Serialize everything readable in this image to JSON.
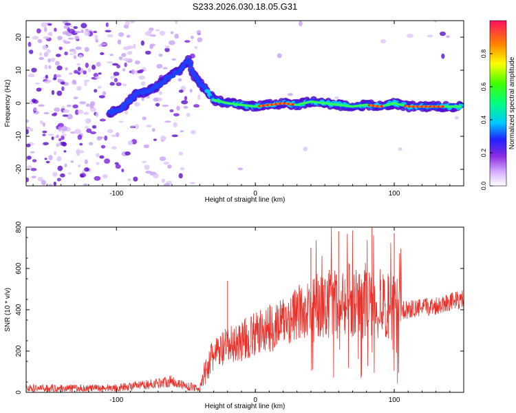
{
  "figure_title": "S233.2026.030.18.05.G31",
  "chart_data": [
    {
      "type": "heatmap",
      "description_role": "spectrogram",
      "xlabel": "Height of straight line (km)",
      "ylabel": "Frequency (Hz)",
      "xlim": [
        -165,
        150
      ],
      "ylim": [
        -25,
        25
      ],
      "xticks": [
        -100,
        0,
        100
      ],
      "yticks": [
        -20,
        -10,
        0,
        10,
        20
      ],
      "ridge": {
        "x": [
          -105,
          -95,
          -85,
          -75,
          -65,
          -55,
          -48,
          -45,
          -40,
          -35,
          -30,
          -20,
          -10,
          0,
          10,
          20,
          30,
          40,
          50,
          60,
          70,
          80,
          90,
          100,
          110,
          120,
          130,
          140,
          148
        ],
        "y": [
          -3,
          -1,
          3,
          4,
          7,
          10,
          13,
          9,
          6,
          4,
          1,
          0,
          -0.5,
          -1,
          -0.5,
          0,
          -0.5,
          0.5,
          0,
          -0.5,
          -1,
          -0.5,
          -1,
          0,
          -1,
          -1,
          -1,
          -1,
          -1
        ]
      },
      "colorbar": {
        "label": "Normalized spectral amplitude",
        "min": 0.0,
        "max": 1.0,
        "ticks": [
          0.0,
          0.2,
          0.4,
          0.6,
          0.8
        ],
        "tick_labels": [
          "0.0",
          "0.2",
          "0.4",
          "0.6",
          "0.8"
        ]
      }
    },
    {
      "type": "line",
      "xlabel": "Height of straight line (km)",
      "ylabel": "SNR (10 * v/v)",
      "xlim": [
        -165,
        150
      ],
      "ylim": [
        0,
        800
      ],
      "xticks": [
        -100,
        0,
        100
      ],
      "yticks": [
        0,
        200,
        400,
        600,
        800
      ],
      "color": "#e8302a",
      "series": [
        {
          "name": "SNR",
          "x": [
            -165,
            -120,
            -100,
            -80,
            -60,
            -50,
            -40,
            -35,
            -30,
            -20,
            -10,
            0,
            10,
            20,
            30,
            40,
            50,
            60,
            70,
            80,
            90,
            100,
            110,
            120,
            130,
            140,
            150
          ],
          "values": [
            20,
            20,
            22,
            35,
            55,
            30,
            20,
            120,
            180,
            220,
            250,
            280,
            310,
            340,
            380,
            410,
            420,
            430,
            430,
            420,
            410,
            400,
            400,
            410,
            420,
            440,
            450
          ]
        }
      ],
      "spikes": [
        {
          "x": -20,
          "value": 540
        },
        {
          "x": 40,
          "value": 700
        },
        {
          "x": 60,
          "value": 780
        },
        {
          "x": 84,
          "value": 800
        },
        {
          "x": 100,
          "value": 770
        }
      ]
    }
  ]
}
